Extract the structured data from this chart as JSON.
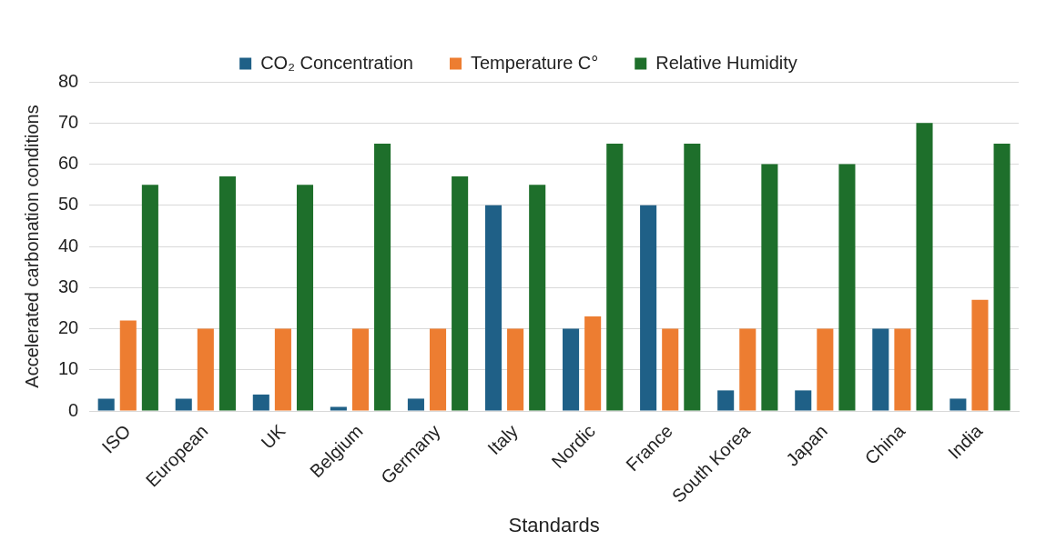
{
  "chart_data": {
    "type": "bar",
    "xlabel": "Standards",
    "ylabel": "Accelerated carbonation conditions",
    "categories": [
      "ISO",
      "European",
      "UK",
      "Belgium",
      "Germany",
      "Italy",
      "Nordic",
      "France",
      "South Korea",
      "Japan",
      "China",
      "India"
    ],
    "series": [
      {
        "name": "CO₂ Concentration",
        "color": "#1f6087",
        "values": [
          3,
          3,
          4,
          1,
          3,
          50,
          20,
          50,
          5,
          5,
          20,
          3
        ]
      },
      {
        "name": "Temperature C°",
        "color": "#ed7d31",
        "values": [
          22,
          20,
          20,
          20,
          20,
          20,
          23,
          20,
          20,
          20,
          20,
          27
        ]
      },
      {
        "name": "Relative Humidity",
        "color": "#1e6f2b",
        "values": [
          55,
          57,
          55,
          65,
          57,
          55,
          65,
          65,
          60,
          60,
          70,
          65
        ]
      }
    ],
    "ylim": [
      0,
      80
    ],
    "yticks": [
      0,
      10,
      20,
      30,
      40,
      50,
      60,
      70,
      80
    ],
    "grid": "y",
    "legend": "top"
  }
}
